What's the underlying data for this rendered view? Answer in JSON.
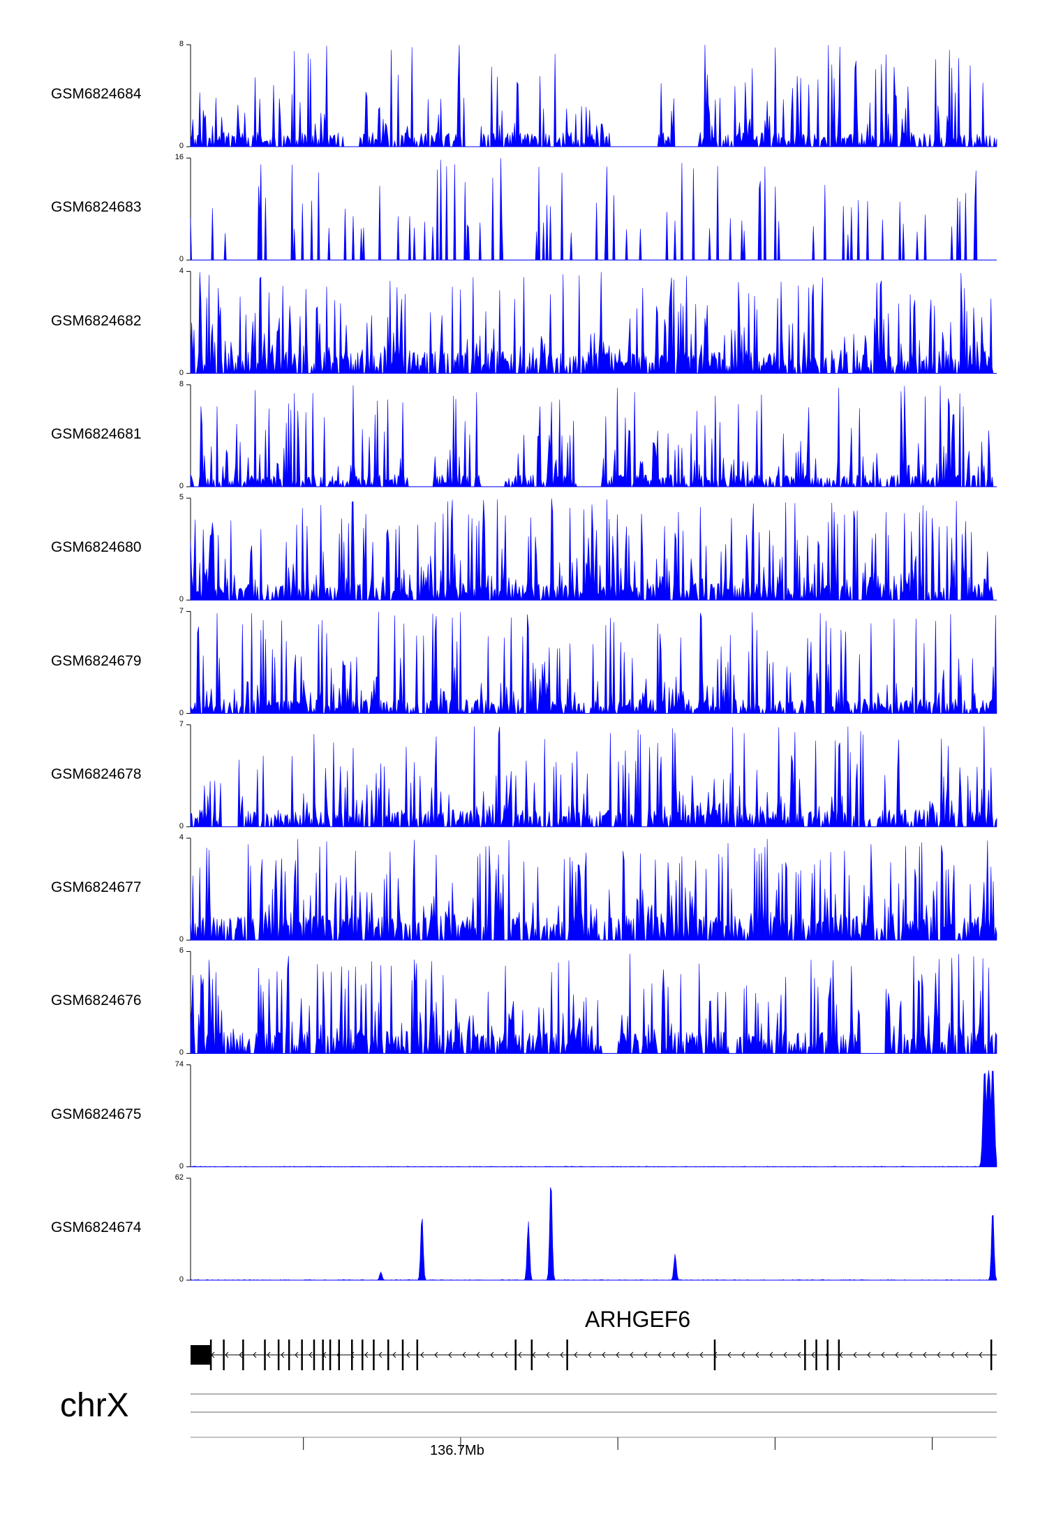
{
  "chart_data": {
    "type": "area",
    "title": "",
    "chromosome": "chrX",
    "gene": "ARHGEF6",
    "coordinate_tick_label": "136.7Mb",
    "series_color": "#0000ff",
    "tracks": [
      {
        "name": "GSM6824684",
        "ymin": 0,
        "ymax": 8,
        "ymin_label": "0",
        "ymax_label": "8",
        "kind": "noisy",
        "seed": 11,
        "base": 0.12,
        "peak_rate": 0.22,
        "max_peak": 8,
        "gaps": [
          [
            0.19,
            0.21
          ],
          [
            0.34,
            0.36
          ],
          [
            0.52,
            0.58
          ],
          [
            0.6,
            0.63
          ]
        ]
      },
      {
        "name": "GSM6824683",
        "ymin": 0,
        "ymax": 16,
        "ymin_label": "0",
        "ymax_label": "16",
        "kind": "sparse",
        "seed": 23,
        "base": 0.0,
        "peak_rate": 0.06,
        "max_peak": 16,
        "end": 0.98,
        "gaps": []
      },
      {
        "name": "GSM6824682",
        "ymin": 0,
        "ymax": 4,
        "ymin_label": "0",
        "ymax_label": "4",
        "kind": "noisy",
        "seed": 37,
        "base": 0.18,
        "peak_rate": 0.3,
        "max_peak": 4,
        "end": 0.995,
        "gaps": []
      },
      {
        "name": "GSM6824681",
        "ymin": 0,
        "ymax": 8,
        "ymin_label": "0",
        "ymax_label": "8",
        "kind": "noisy",
        "seed": 41,
        "base": 0.1,
        "peak_rate": 0.25,
        "max_peak": 8,
        "end": 0.995,
        "gaps": [
          [
            0.27,
            0.3
          ],
          [
            0.36,
            0.39
          ],
          [
            0.48,
            0.51
          ]
        ]
      },
      {
        "name": "GSM6824680",
        "ymin": 0,
        "ymax": 5,
        "ymin_label": "0",
        "ymax_label": "5",
        "kind": "noisy",
        "seed": 53,
        "base": 0.14,
        "peak_rate": 0.3,
        "max_peak": 5,
        "end": 0.995,
        "gaps": []
      },
      {
        "name": "GSM6824679",
        "ymin": 0,
        "ymax": 7,
        "ymin_label": "0",
        "ymax_label": "7",
        "kind": "noisy",
        "seed": 67,
        "base": 0.12,
        "peak_rate": 0.22,
        "max_peak": 7,
        "gaps": []
      },
      {
        "name": "GSM6824678",
        "ymin": 0,
        "ymax": 7,
        "ymin_label": "0",
        "ymax_label": "7",
        "kind": "noisy",
        "seed": 71,
        "base": 0.14,
        "peak_rate": 0.24,
        "max_peak": 7,
        "gaps": [
          [
            0.04,
            0.06
          ]
        ]
      },
      {
        "name": "GSM6824677",
        "ymin": 0,
        "ymax": 4,
        "ymin_label": "0",
        "ymax_label": "4",
        "kind": "noisy",
        "seed": 83,
        "base": 0.2,
        "peak_rate": 0.3,
        "max_peak": 4,
        "gaps": []
      },
      {
        "name": "GSM6824676",
        "ymin": 0,
        "ymax": 6,
        "ymin_label": "0",
        "ymax_label": "6",
        "kind": "noisy",
        "seed": 97,
        "base": 0.18,
        "peak_rate": 0.28,
        "max_peak": 6,
        "gaps": [
          [
            0.51,
            0.53
          ],
          [
            0.83,
            0.86
          ]
        ]
      },
      {
        "name": "GSM6824675",
        "ymin": 0,
        "ymax": 74,
        "ymin_label": "0",
        "ymax_label": "74",
        "kind": "flat",
        "seed": 101,
        "base": 0.6,
        "peak_rate": 0.0,
        "max_peak": 74,
        "peaks": [
          [
            0.985,
            72,
            0.004
          ],
          [
            0.995,
            74,
            0.004
          ],
          [
            0.99,
            70,
            0.006
          ]
        ]
      },
      {
        "name": "GSM6824674",
        "ymin": 0,
        "ymax": 62,
        "ymin_label": "0",
        "ymax_label": "62",
        "kind": "flat",
        "seed": 113,
        "base": 0.8,
        "peak_rate": 0.0,
        "max_peak": 62,
        "peaks": [
          [
            0.287,
            40,
            0.003
          ],
          [
            0.419,
            36,
            0.003
          ],
          [
            0.447,
            62,
            0.003
          ],
          [
            0.601,
            16,
            0.003
          ],
          [
            0.995,
            44,
            0.003
          ],
          [
            0.236,
            5,
            0.003
          ]
        ]
      }
    ],
    "gene_model": {
      "strand": "-",
      "start_fraction": 0.0,
      "end_fraction": 1.0,
      "exons": [
        0.0,
        0.025,
        0.041,
        0.065,
        0.092,
        0.109,
        0.122,
        0.138,
        0.153,
        0.164,
        0.173,
        0.184,
        0.2,
        0.213,
        0.227,
        0.245,
        0.263,
        0.281,
        0.403,
        0.423,
        0.467,
        0.65,
        0.762,
        0.776,
        0.79,
        0.804,
        0.993
      ]
    },
    "axis_ticks": [
      0.14,
      0.335,
      0.53,
      0.725,
      0.92
    ],
    "labeled_tick_index": 1
  }
}
